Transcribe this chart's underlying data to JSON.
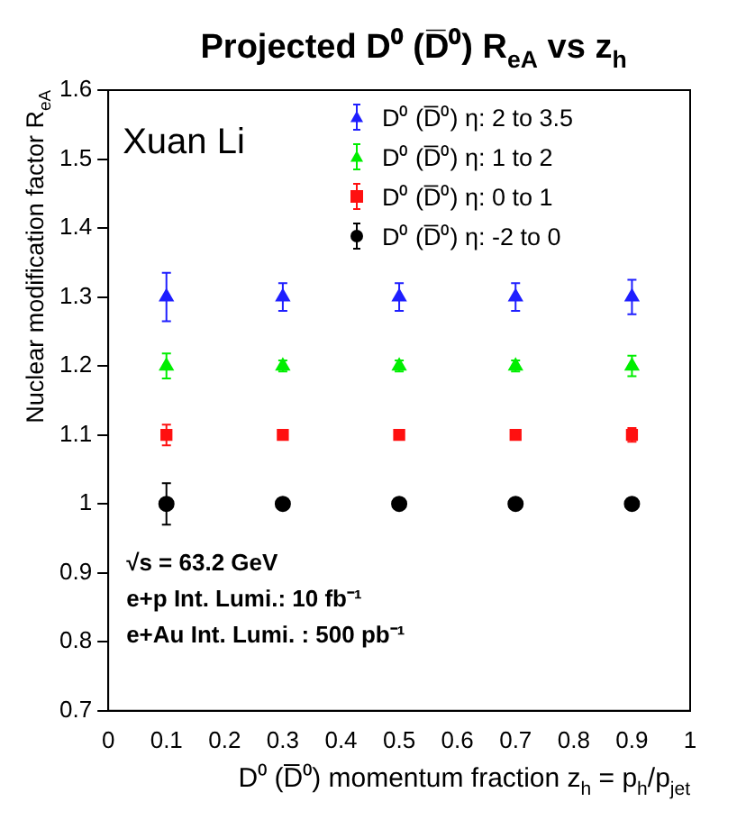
{
  "chart_data": {
    "type": "scatter",
    "title": "Projected D⁰ (D̅⁰) R$_{eA}$ vs z$_{h}$",
    "xlabel": "D⁰ (D̅⁰) momentum fraction z$_{h}$ = p$_{h}$/p$_{jet}$",
    "ylabel": "Nuclear modification factor R$_{eA}$",
    "xlim": [
      0,
      1
    ],
    "xticks": [
      0,
      0.1,
      0.2,
      0.3,
      0.4,
      0.5,
      0.6,
      0.7,
      0.8,
      0.9,
      1
    ],
    "ylim": [
      0.7,
      1.6
    ],
    "yticks": [
      0.7,
      0.8,
      0.9,
      1,
      1.1,
      1.2,
      1.3,
      1.4,
      1.5,
      1.6
    ],
    "grid": false,
    "legend": "top right",
    "x": [
      0.1,
      0.3,
      0.5,
      0.7,
      0.9
    ],
    "series": [
      {
        "name": "D⁰ (D̅⁰) η: 2 to 3.5",
        "color": "#1f1fff",
        "marker": "triangle",
        "values": [
          1.3,
          1.3,
          1.3,
          1.3,
          1.3
        ],
        "errors": [
          0.035,
          0.02,
          0.02,
          0.02,
          0.025
        ]
      },
      {
        "name": "D⁰ (D̅⁰) η: 1 to 2",
        "color": "#00ee00",
        "marker": "triangle",
        "values": [
          1.2,
          1.2,
          1.2,
          1.2,
          1.2
        ],
        "errors": [
          0.018,
          0.008,
          0.008,
          0.008,
          0.015
        ]
      },
      {
        "name": "D⁰ (D̅⁰) η: 0 to 1",
        "color": "#ff1010",
        "marker": "square",
        "values": [
          1.1,
          1.1,
          1.1,
          1.1,
          1.1
        ],
        "errors": [
          0.015,
          null,
          null,
          null,
          0.01
        ]
      },
      {
        "name": "D⁰ (D̅⁰) η: -2 to 0",
        "color": "#000000",
        "marker": "circle",
        "values": [
          1.0,
          1.0,
          1.0,
          1.0,
          1.0
        ],
        "errors": [
          0.03,
          0.008,
          null,
          null,
          0.008
        ]
      }
    ],
    "annotations": [
      "Xuan Li",
      "√s = 63.2 GeV",
      "e+p Int. Lumi.: 10 fb⁻¹",
      "e+Au Int. Lumi. : 500 pb⁻¹"
    ]
  }
}
